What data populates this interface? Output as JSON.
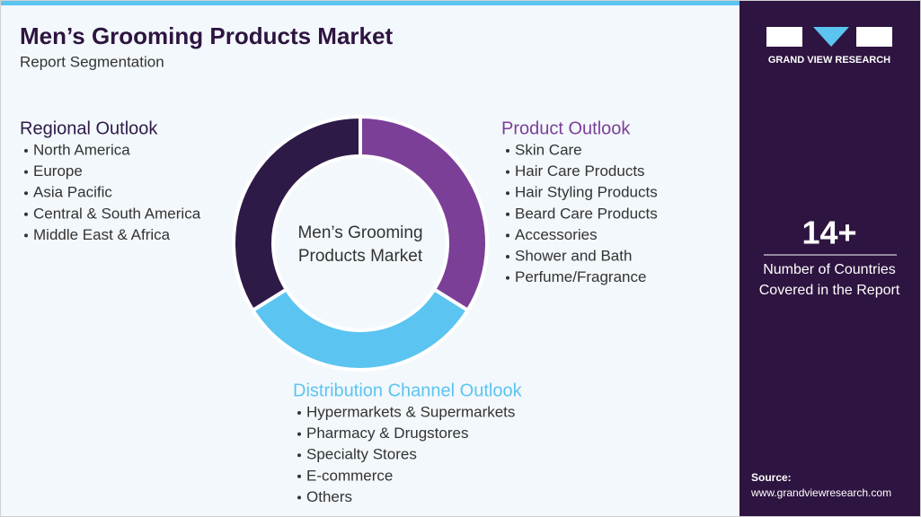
{
  "header": {
    "title": "Men’s Grooming Products Market",
    "subtitle": "Report Segmentation"
  },
  "center_label": [
    "Men’s Grooming",
    "Products Market"
  ],
  "segments": [
    {
      "title": "Regional Outlook",
      "items": [
        "North America",
        "Europe",
        "Asia Pacific",
        "Central & South America",
        "Middle East & Africa"
      ]
    },
    {
      "title": "Product Outlook",
      "items": [
        "Skin Care",
        "Hair Care Products",
        "Hair Styling Products",
        "Beard Care Products",
        "Accessories",
        "Shower and Bath",
        "Perfume/Fragrance"
      ]
    },
    {
      "title": "Distribution Channel Outlook",
      "items": [
        "Hypermarkets & Supermarkets",
        "Pharmacy & Drugstores",
        "Specialty Stores",
        "E-commerce",
        "Others"
      ]
    }
  ],
  "sidebar": {
    "brand": "GRAND VIEW RESEARCH",
    "stat": "14+",
    "stat_label": [
      "Number of Countries",
      "Covered in the Report"
    ],
    "source_label": "Source:",
    "source_url": "www.grandviewresearch.com"
  }
}
